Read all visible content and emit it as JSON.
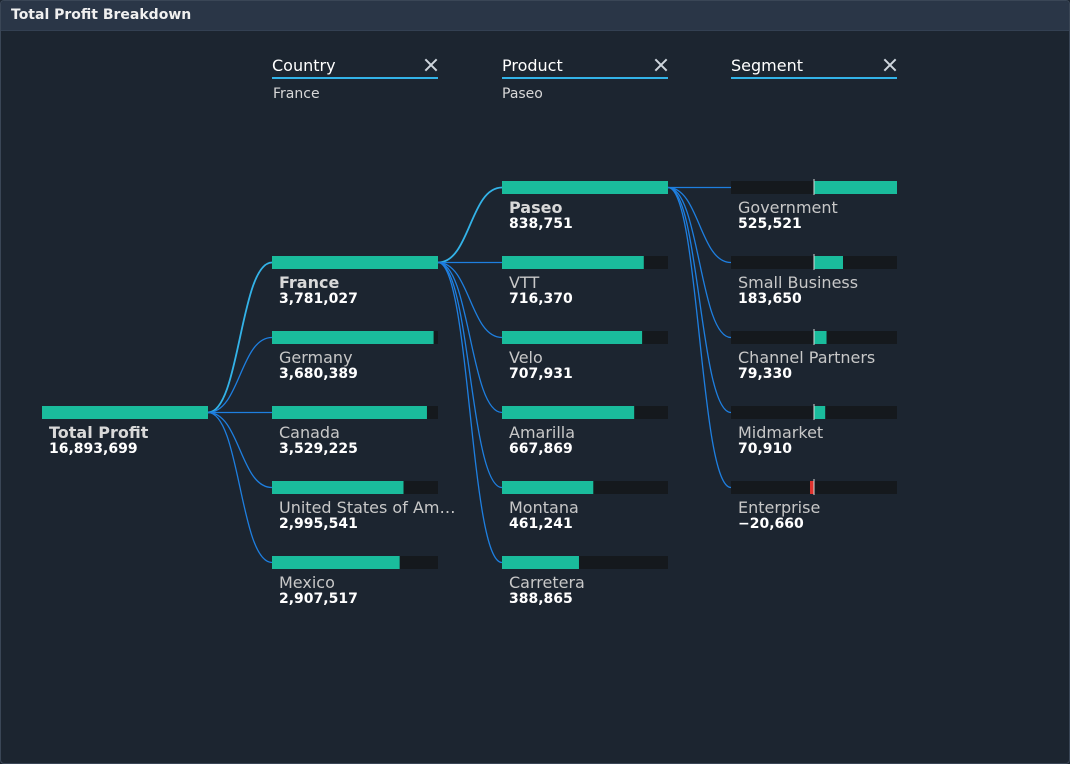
{
  "window": {
    "title": "Total Profit Breakdown"
  },
  "levels": [
    {
      "name": "Country",
      "selected": "France"
    },
    {
      "name": "Product",
      "selected": "Paseo"
    },
    {
      "name": "Segment",
      "selected": ""
    }
  ],
  "colors": {
    "bar": "#1abc9c",
    "track": "#15191d",
    "negative": "#e0332e",
    "link_active": "#33b3e8",
    "link": "#1e7fe0",
    "background": "#1c2530"
  },
  "chart_data": {
    "type": "decomposition-tree",
    "measure": "Total Profit",
    "root": {
      "label": "Total Profit",
      "value": 16893699
    },
    "columns": [
      {
        "level": "Country",
        "selected": "France",
        "nodes": [
          {
            "label": "France",
            "value": 3781027
          },
          {
            "label": "Germany",
            "value": 3680389
          },
          {
            "label": "Canada",
            "value": 3529225
          },
          {
            "label": "United States of Am…",
            "value": 2995541
          },
          {
            "label": "Mexico",
            "value": 2907517
          }
        ]
      },
      {
        "level": "Product",
        "selected": "Paseo",
        "nodes": [
          {
            "label": "Paseo",
            "value": 838751
          },
          {
            "label": "VTT",
            "value": 716370
          },
          {
            "label": "Velo",
            "value": 707931
          },
          {
            "label": "Amarilla",
            "value": 667869
          },
          {
            "label": "Montana",
            "value": 461241
          },
          {
            "label": "Carretera",
            "value": 388865
          }
        ]
      },
      {
        "level": "Segment",
        "selected": "",
        "diverging": true,
        "nodes": [
          {
            "label": "Government",
            "value": 525521
          },
          {
            "label": "Small Business",
            "value": 183650
          },
          {
            "label": "Channel Partners",
            "value": 79330
          },
          {
            "label": "Midmarket",
            "value": 70910
          },
          {
            "label": "Enterprise",
            "value": -20660
          }
        ]
      }
    ]
  }
}
